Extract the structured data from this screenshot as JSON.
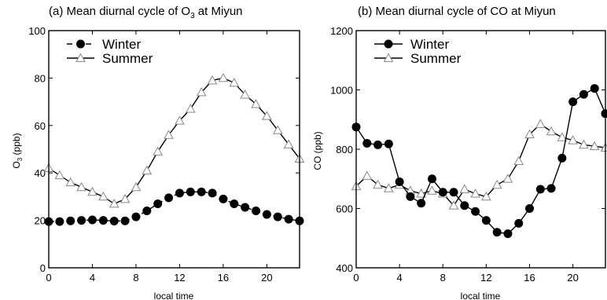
{
  "chart_data": [
    {
      "type": "line",
      "title": "(a) Mean diurnal cycle of O",
      "title_sub": "3",
      "title_end": " at Miyun",
      "xlabel": "local time",
      "ylabel": "O",
      "ylabel_sub": "3",
      "ylabel_end": " (ppb)",
      "xlim": [
        0,
        23
      ],
      "ylim": [
        0,
        100
      ],
      "xticks": [
        0,
        4,
        8,
        12,
        16,
        20
      ],
      "yticks": [
        0,
        20,
        40,
        60,
        80,
        100
      ],
      "legend_position": "top-left",
      "series": [
        {
          "name": "Winter",
          "marker": "filled-circle",
          "line": "dashed",
          "color": "#000000",
          "x": [
            0,
            1,
            2,
            3,
            4,
            5,
            6,
            7,
            8,
            9,
            10,
            11,
            12,
            13,
            14,
            15,
            16,
            17,
            18,
            19,
            20,
            21,
            22,
            23
          ],
          "values": [
            19.5,
            19.5,
            19.8,
            20,
            20.2,
            20,
            19.7,
            19.8,
            21.5,
            24,
            27,
            29.5,
            31.5,
            32,
            32,
            31.5,
            29,
            27,
            25.5,
            24,
            22.5,
            21.5,
            20.5,
            19.8
          ]
        },
        {
          "name": "Summer",
          "marker": "open-triangle",
          "line": "solid",
          "color": "#000000",
          "x": [
            0,
            1,
            2,
            3,
            4,
            5,
            6,
            7,
            8,
            9,
            10,
            11,
            12,
            13,
            14,
            15,
            16,
            17,
            18,
            19,
            20,
            21,
            22,
            23
          ],
          "values": [
            42,
            39,
            36,
            34,
            32,
            30,
            27,
            29,
            34,
            41,
            49,
            56,
            62,
            67,
            74,
            79,
            80,
            78,
            73,
            69,
            64,
            58,
            52,
            46
          ]
        }
      ]
    },
    {
      "type": "line",
      "title": "(b) Mean diurnal cycle of CO at Miyun",
      "xlabel": "local time",
      "ylabel": "CO (ppb)",
      "xlim": [
        0,
        23
      ],
      "ylim": [
        400,
        1200
      ],
      "xticks": [
        0,
        4,
        8,
        12,
        16,
        20
      ],
      "yticks": [
        400,
        600,
        800,
        1000,
        1200
      ],
      "legend_position": "top-left",
      "series": [
        {
          "name": "Winter",
          "marker": "filled-circle",
          "line": "solid",
          "color": "#000000",
          "x": [
            0,
            1,
            2,
            3,
            4,
            5,
            6,
            7,
            8,
            9,
            10,
            11,
            12,
            13,
            14,
            15,
            16,
            17,
            18,
            19,
            20,
            21,
            22,
            23
          ],
          "values": [
            875,
            820,
            815,
            818,
            690,
            640,
            618,
            700,
            655,
            655,
            610,
            590,
            560,
            520,
            515,
            550,
            600,
            665,
            668,
            770,
            960,
            985,
            1005,
            920
          ]
        },
        {
          "name": "Summer",
          "marker": "open-triangle",
          "line": "solid",
          "color": "#000000",
          "x": [
            0,
            1,
            2,
            3,
            4,
            5,
            6,
            7,
            8,
            9,
            10,
            11,
            12,
            13,
            14,
            15,
            16,
            17,
            18,
            19,
            20,
            21,
            22,
            23
          ],
          "values": [
            675,
            710,
            680,
            668,
            680,
            660,
            650,
            660,
            650,
            610,
            665,
            650,
            640,
            680,
            700,
            760,
            850,
            885,
            860,
            840,
            830,
            815,
            810,
            805
          ]
        }
      ]
    }
  ]
}
